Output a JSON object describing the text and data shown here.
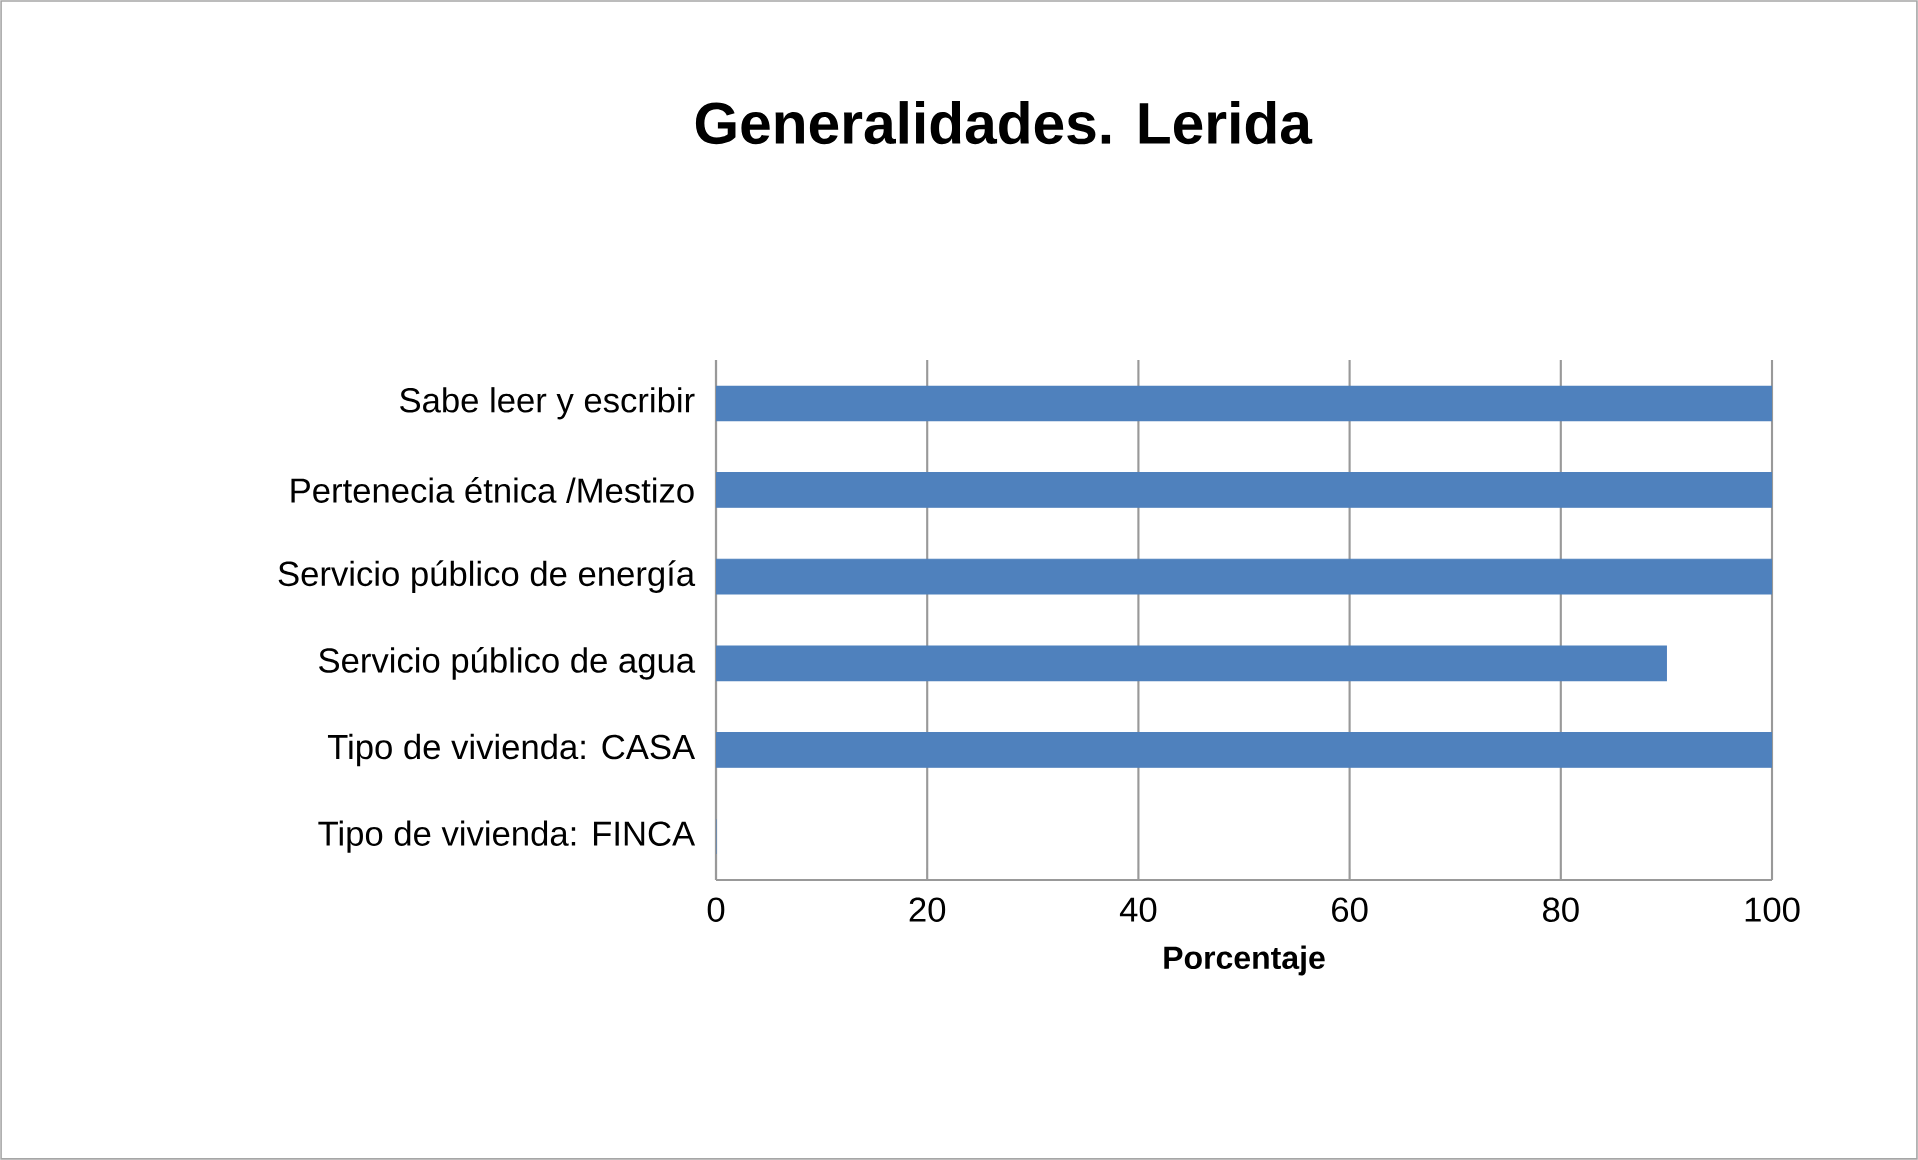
{
  "chart_data": {
    "type": "bar",
    "orientation": "horizontal",
    "title": "Generalidades. Lerida",
    "xlabel": "Porcentaje",
    "categories": [
      "Sabe leer y escribir",
      "Pertenecia étnica /Mestizo",
      "Servicio público de energía",
      "Servicio público de agua",
      "Tipo de vivienda: CASA",
      "Tipo de vivienda: FINCA"
    ],
    "values": [
      100,
      100,
      100,
      90,
      100,
      0
    ],
    "color": "#4f81bd",
    "xlim": [
      0,
      100
    ],
    "xticks": [
      0,
      20,
      40,
      60,
      80,
      100
    ],
    "grid": "x"
  }
}
